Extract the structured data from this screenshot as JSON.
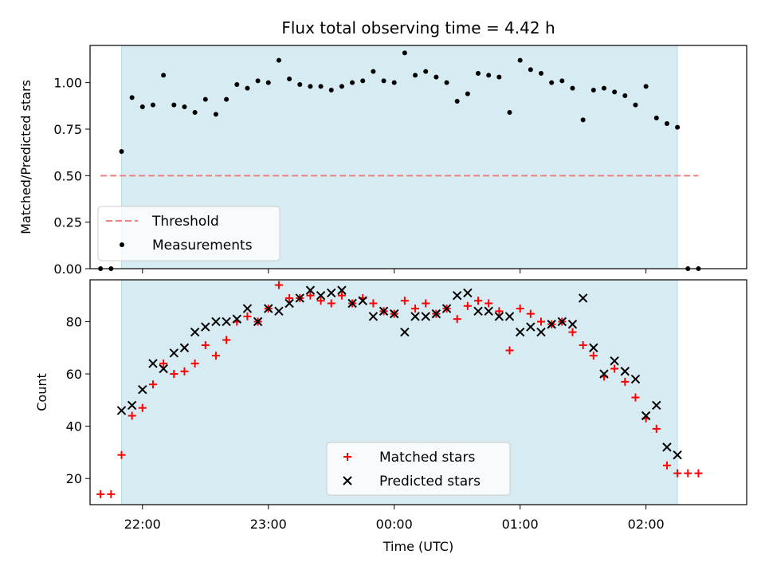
{
  "chart_data": [
    {
      "type": "scatter",
      "title": "Flux total observing time = 4.42 h",
      "ylabel": "Matched/Predicted stars",
      "xlabel": "",
      "ylim": [
        0,
        1.2
      ],
      "xlim": [
        "21:35",
        "02:48"
      ],
      "yticks": [
        "0.00",
        "0.25",
        "0.50",
        "0.75",
        "1.00"
      ],
      "yticks_values": [
        0,
        0.25,
        0.5,
        0.75,
        1.0
      ],
      "observing_window": [
        "21:50",
        "02:15"
      ],
      "threshold": {
        "name": "Threshold",
        "y": 0.5,
        "x_range": [
          "21:40",
          "02:25"
        ],
        "color": "#f08080"
      },
      "legend": {
        "placement": "lower-left",
        "entries": [
          "Threshold",
          "Measurements"
        ]
      },
      "series": [
        {
          "name": "Measurements",
          "color": "#000000",
          "marker": "dot",
          "x": [
            "21:40",
            "21:45",
            "21:50",
            "21:55",
            "22:00",
            "22:05",
            "22:10",
            "22:15",
            "22:20",
            "22:25",
            "22:30",
            "22:35",
            "22:40",
            "22:45",
            "22:50",
            "22:55",
            "23:00",
            "23:05",
            "23:10",
            "23:15",
            "23:20",
            "23:25",
            "23:30",
            "23:35",
            "23:40",
            "23:45",
            "23:50",
            "23:55",
            "00:00",
            "00:05",
            "00:10",
            "00:15",
            "00:20",
            "00:25",
            "00:30",
            "00:35",
            "00:40",
            "00:45",
            "00:50",
            "00:55",
            "01:00",
            "01:05",
            "01:10",
            "01:15",
            "01:20",
            "01:25",
            "01:30",
            "01:35",
            "01:40",
            "01:45",
            "01:50",
            "01:55",
            "02:00",
            "02:05",
            "02:10",
            "02:15",
            "02:20",
            "02:25"
          ],
          "values": [
            0.0,
            0.0,
            0.63,
            0.92,
            0.87,
            0.88,
            1.04,
            0.88,
            0.87,
            0.84,
            0.91,
            0.83,
            0.91,
            0.99,
            0.97,
            1.01,
            1.0,
            1.12,
            1.02,
            0.99,
            0.98,
            0.98,
            0.96,
            0.98,
            1.0,
            1.01,
            1.06,
            1.01,
            1.0,
            1.16,
            1.04,
            1.06,
            1.03,
            1.0,
            0.9,
            0.94,
            1.05,
            1.04,
            1.03,
            0.84,
            1.12,
            1.07,
            1.05,
            1.0,
            1.01,
            0.97,
            0.8,
            0.96,
            0.97,
            0.95,
            0.93,
            0.88,
            0.98,
            0.81,
            0.78,
            0.76,
            0.0,
            0.0
          ]
        }
      ]
    },
    {
      "type": "scatter",
      "title": "",
      "ylabel": "Count",
      "xlabel": "Time (UTC)",
      "ylim": [
        10,
        96
      ],
      "xlim": [
        "21:35",
        "02:48"
      ],
      "xticks": [
        "22:00",
        "23:00",
        "00:00",
        "01:00",
        "02:00"
      ],
      "yticks": [
        "20",
        "40",
        "60",
        "80"
      ],
      "yticks_values": [
        20,
        40,
        60,
        80
      ],
      "observing_window": [
        "21:50",
        "02:15"
      ],
      "legend": {
        "placement": "lower-center",
        "entries": [
          "Matched stars",
          "Predicted stars"
        ]
      },
      "series": [
        {
          "name": "Matched stars",
          "color": "#ff0000",
          "marker": "plus",
          "x": [
            "21:40",
            "21:45",
            "21:50",
            "21:55",
            "22:00",
            "22:05",
            "22:10",
            "22:15",
            "22:20",
            "22:25",
            "22:30",
            "22:35",
            "22:40",
            "22:45",
            "22:50",
            "22:55",
            "23:00",
            "23:05",
            "23:10",
            "23:15",
            "23:20",
            "23:25",
            "23:30",
            "23:35",
            "23:40",
            "23:45",
            "23:50",
            "23:55",
            "00:00",
            "00:05",
            "00:10",
            "00:15",
            "00:20",
            "00:25",
            "00:30",
            "00:35",
            "00:40",
            "00:45",
            "00:50",
            "00:55",
            "01:00",
            "01:05",
            "01:10",
            "01:15",
            "01:20",
            "01:25",
            "01:30",
            "01:35",
            "01:40",
            "01:45",
            "01:50",
            "01:55",
            "02:00",
            "02:05",
            "02:10",
            "02:15",
            "02:20",
            "02:25"
          ],
          "values": [
            14,
            14,
            29,
            44,
            47,
            56,
            64,
            60,
            61,
            64,
            71,
            67,
            73,
            80,
            82,
            80,
            85,
            94,
            89,
            89,
            90,
            88,
            87,
            90,
            87,
            89,
            87,
            84,
            83,
            88,
            85,
            87,
            83,
            85,
            81,
            86,
            88,
            87,
            84,
            69,
            85,
            83,
            80,
            79,
            80,
            76,
            71,
            67,
            59,
            62,
            57,
            51,
            43,
            39,
            25,
            22,
            22,
            22
          ]
        },
        {
          "name": "Predicted stars",
          "color": "#000000",
          "marker": "cross",
          "x": [
            "21:50",
            "21:55",
            "22:00",
            "22:05",
            "22:10",
            "22:15",
            "22:20",
            "22:25",
            "22:30",
            "22:35",
            "22:40",
            "22:45",
            "22:50",
            "22:55",
            "23:00",
            "23:05",
            "23:10",
            "23:15",
            "23:20",
            "23:25",
            "23:30",
            "23:35",
            "23:40",
            "23:45",
            "23:50",
            "23:55",
            "00:00",
            "00:05",
            "00:10",
            "00:15",
            "00:20",
            "00:25",
            "00:30",
            "00:35",
            "00:40",
            "00:45",
            "00:50",
            "00:55",
            "01:00",
            "01:05",
            "01:10",
            "01:15",
            "01:20",
            "01:25",
            "01:30",
            "01:35",
            "01:40",
            "01:45",
            "01:50",
            "01:55",
            "02:00",
            "02:05",
            "02:10",
            "02:15"
          ],
          "values": [
            46,
            48,
            54,
            64,
            62,
            68,
            70,
            76,
            78,
            80,
            80,
            81,
            85,
            80,
            85,
            84,
            87,
            89,
            92,
            90,
            91,
            92,
            87,
            88,
            82,
            84,
            83,
            76,
            82,
            82,
            83,
            85,
            90,
            91,
            84,
            84,
            82,
            82,
            76,
            78,
            76,
            79,
            80,
            79,
            89,
            70,
            60,
            65,
            61,
            58,
            44,
            48,
            32,
            29
          ]
        }
      ]
    }
  ]
}
